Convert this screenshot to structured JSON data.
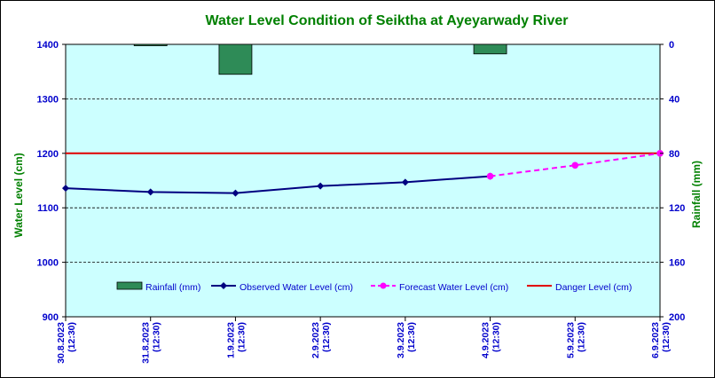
{
  "chart_data": {
    "type": "line",
    "title": "Water Level Condition  of Seiktha at Ayeyarwady  River",
    "ylabel": "Water Level (cm)",
    "y2label": "Rainfall (mm)",
    "x_ticks": [
      [
        "30.8.2023",
        "(12:30)"
      ],
      [
        "31.8.2023",
        "(12:30)"
      ],
      [
        "1.9.2023",
        "(12:30)"
      ],
      [
        "2.9.2023",
        "(12:30)"
      ],
      [
        "3.9.2023",
        "(12:30)"
      ],
      [
        "4.9.2023",
        "(12:30)"
      ],
      [
        "5.9.2023",
        "(12:30)"
      ],
      [
        "6.9.2023",
        "(12:30)"
      ]
    ],
    "ylim": [
      900,
      1400
    ],
    "yticks": [
      900,
      1000,
      1100,
      1200,
      1300,
      1400
    ],
    "y2lim": [
      0,
      200
    ],
    "y2ticks": [
      0,
      40,
      80,
      120,
      160,
      200
    ],
    "y2_inverted": true,
    "grid": "horizontal dashed",
    "legend_position": "inside-bottom",
    "series": [
      {
        "name": "Rainfall (mm)",
        "kind": "bar",
        "axis": "right",
        "color": "#2e8b57",
        "x_index": [
          1,
          2,
          5
        ],
        "values": [
          1,
          22,
          7
        ]
      },
      {
        "name": "Observed Water Level (cm)",
        "kind": "line",
        "axis": "left",
        "color": "#000080",
        "marker": "diamond",
        "x_index": [
          0,
          1,
          2,
          3,
          4,
          5
        ],
        "values": [
          1136,
          1129,
          1127,
          1140,
          1147,
          1158
        ]
      },
      {
        "name": "Forecast Water Level (cm)",
        "kind": "line",
        "axis": "left",
        "color": "#ff00ff",
        "dashed": true,
        "marker": "circle",
        "x_index": [
          5,
          6,
          7
        ],
        "values": [
          1158,
          1178,
          1200
        ]
      },
      {
        "name": "Danger Level (cm)",
        "kind": "hline",
        "axis": "left",
        "color": "#e00000",
        "value": 1200
      }
    ],
    "colors": {
      "plot_bg": "#ccffff",
      "title": "#008000",
      "axis_title": "#008000",
      "tick_labels": "#0000cc"
    }
  }
}
